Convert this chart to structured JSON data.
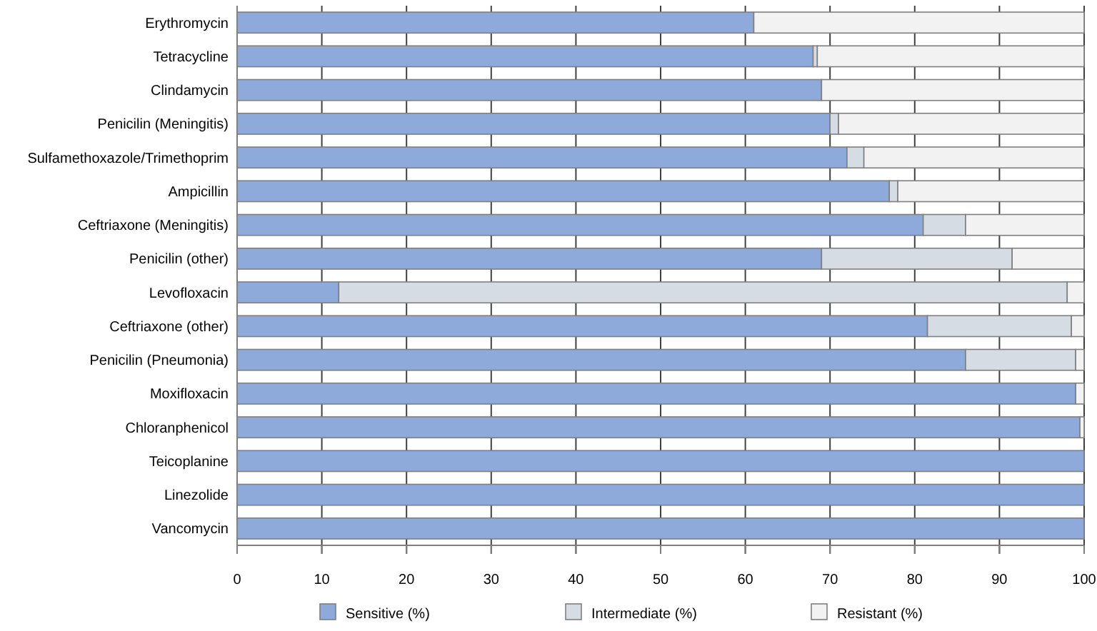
{
  "chart_data": {
    "type": "bar",
    "orientation": "horizontal",
    "stacked": true,
    "categories": [
      "Erythromycin",
      "Tetracycline",
      "Clindamycin",
      "Penicilin (Meningitis)",
      "Sulfamethoxazole/Trimethoprim",
      "Ampicillin",
      "Ceftriaxone (Meningitis)",
      "Penicilin (other)",
      "Levofloxacin",
      "Ceftriaxone (other)",
      "Penicilin (Pneumonia)",
      "Moxifloxacin",
      "Chloranphenicol",
      "Teicoplanine",
      "Linezolide",
      "Vancomycin"
    ],
    "series": [
      {
        "name": "Sensitive (%)",
        "color": "#8eaadb",
        "values": [
          61,
          68,
          69,
          70,
          72,
          77,
          81,
          69,
          12,
          81.5,
          86,
          99,
          99.5,
          100,
          100,
          100
        ]
      },
      {
        "name": "Intermediate (%)",
        "color": "#d6dce4",
        "values": [
          0,
          0.5,
          0,
          1,
          2,
          1,
          5,
          22.5,
          86,
          17,
          13,
          0,
          0,
          0,
          0,
          0
        ]
      },
      {
        "name": "Resistant (%)",
        "color": "#f2f2f2",
        "values": [
          39,
          31.5,
          31,
          29,
          26,
          22,
          14,
          8.5,
          2,
          1.5,
          1,
          1,
          0.5,
          0,
          0,
          0
        ]
      }
    ],
    "xlim": [
      0,
      100
    ],
    "xticks": [
      0,
      10,
      20,
      30,
      40,
      50,
      60,
      70,
      80,
      90,
      100
    ],
    "grid": "x",
    "legend": "bottom"
  }
}
